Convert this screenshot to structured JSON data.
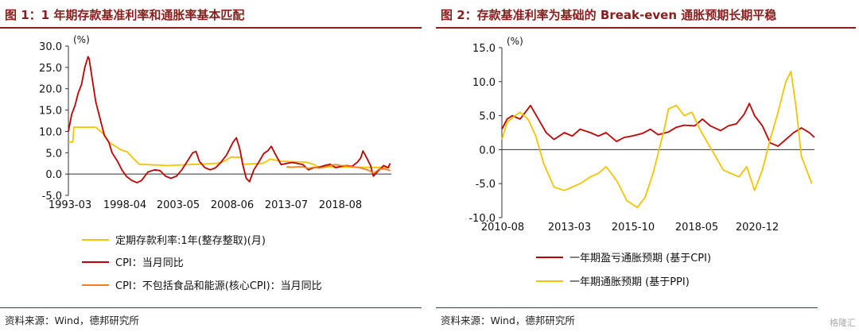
{
  "left": {
    "title": "图 1：1 年期存款基准利率和通胀率基本匹配",
    "source": "资料来源：Wind，德邦研究所"
  },
  "right": {
    "title": "图 2：存款基准利率为基础的 Break-even 通胀预期长期平稳",
    "source": "资料来源：Wind，德邦研究所"
  },
  "watermark": "格隆汇",
  "colors": {
    "heading": "#8a1c1c",
    "darkred": "#c00000",
    "gold": "#f5c400",
    "orange": "#f57c20"
  },
  "chart_data": [
    {
      "type": "line",
      "unit_label": "(%)",
      "ylim": [
        -5,
        30
      ],
      "yticks": [
        "30.0",
        "25.0",
        "20.0",
        "15.0",
        "10.0",
        "5.0",
        "0.0",
        "-5.0"
      ],
      "xticks": [
        "1993-03",
        "1998-04",
        "2003-05",
        "2008-06",
        "2013-07",
        "2018-08"
      ],
      "grid": false,
      "legend_position": "bottom",
      "series": [
        {
          "name": "定期存款利率:1年(整存整取)(月)",
          "color": "#f5c400",
          "x": [
            1993.0,
            1993.4,
            1993.5,
            1995.5,
            1996.3,
            1996.7,
            1997.8,
            1998.4,
            1998.9,
            1999.5,
            2002.1,
            2004.8,
            2006.6,
            2007.3,
            2007.6,
            2007.9,
            2008.8,
            2008.9,
            2008.95,
            2010.8,
            2011.2,
            2011.5,
            2012.5,
            2014.8,
            2015.2,
            2015.5,
            2015.7,
            2015.85,
            2022.5
          ],
          "values": [
            7.5,
            7.5,
            11.0,
            11.0,
            9.2,
            7.5,
            5.7,
            5.2,
            3.8,
            2.3,
            2.0,
            2.3,
            2.5,
            3.0,
            3.5,
            4.0,
            3.9,
            3.6,
            2.3,
            2.5,
            3.0,
            3.5,
            3.0,
            2.8,
            2.5,
            2.25,
            2.0,
            1.75,
            1.5
          ]
        },
        {
          "name": "CPI：当月同比",
          "color": "#c00000",
          "x": [
            1993.0,
            1993.3,
            1993.6,
            1993.9,
            1994.2,
            1994.5,
            1994.8,
            1994.9,
            1995.2,
            1995.5,
            1995.9,
            1996.3,
            1996.7,
            1997.0,
            1997.5,
            1997.9,
            1998.3,
            1998.8,
            1999.3,
            1999.7,
            2000.3,
            2000.9,
            2001.4,
            2001.9,
            2002.4,
            2002.9,
            2003.4,
            2003.9,
            2004.4,
            2004.7,
            2005.0,
            2005.5,
            2006.0,
            2006.5,
            2007.0,
            2007.5,
            2007.9,
            2008.1,
            2008.4,
            2008.7,
            2009.0,
            2009.3,
            2009.6,
            2010.0,
            2010.5,
            2010.9,
            2011.3,
            2011.6,
            2012.0,
            2012.5,
            2013.0,
            2013.5,
            2014.0,
            2014.5,
            2015.0,
            2015.5,
            2016.0,
            2016.5,
            2017.0,
            2017.5,
            2018.0,
            2018.5,
            2019.0,
            2019.5,
            2019.8,
            2020.0,
            2020.3,
            2020.7,
            2020.95,
            2021.5,
            2021.9,
            2022.3,
            2022.5
          ],
          "values": [
            10.0,
            14.0,
            16.0,
            19.0,
            21.0,
            25.0,
            27.5,
            27.0,
            22.0,
            17.0,
            13.0,
            9.0,
            7.5,
            5.0,
            3.0,
            1.0,
            -0.5,
            -1.5,
            -2.0,
            -1.5,
            0.5,
            1.0,
            0.8,
            -0.5,
            -1.0,
            -0.5,
            1.0,
            3.0,
            5.0,
            5.3,
            3.0,
            1.5,
            1.0,
            1.5,
            2.8,
            4.5,
            6.5,
            7.5,
            8.5,
            6.0,
            2.0,
            -1.0,
            -1.8,
            1.0,
            3.0,
            4.8,
            5.5,
            6.5,
            4.5,
            2.2,
            2.5,
            2.7,
            2.5,
            2.2,
            1.0,
            1.5,
            1.6,
            2.0,
            2.3,
            1.5,
            1.8,
            2.0,
            1.8,
            2.8,
            3.8,
            5.4,
            4.0,
            2.0,
            -0.5,
            1.0,
            2.0,
            1.5,
            2.5
          ]
        },
        {
          "name": "CPI：不包括食品和能源(核心CPI)：当月同比",
          "color": "#f57c20",
          "x": [
            2013.0,
            2013.5,
            2014.0,
            2014.5,
            2015.0,
            2015.5,
            2016.0,
            2016.5,
            2017.0,
            2017.5,
            2018.0,
            2018.5,
            2019.0,
            2019.5,
            2020.0,
            2020.5,
            2021.0,
            2021.5,
            2022.0,
            2022.5
          ],
          "values": [
            1.7,
            1.6,
            1.7,
            1.7,
            1.3,
            1.6,
            1.4,
            1.6,
            2.0,
            2.2,
            2.0,
            1.9,
            1.7,
            1.6,
            1.3,
            0.9,
            0.2,
            1.2,
            1.2,
            0.8
          ]
        }
      ]
    },
    {
      "type": "line",
      "unit_label": "(%)",
      "ylim": [
        -10,
        15
      ],
      "yticks": [
        "15.0",
        "10.0",
        "5.0",
        "0.0",
        "-5.0",
        "-10.0"
      ],
      "xticks": [
        "2010-08",
        "2013-03",
        "2015-10",
        "2018-05",
        "2020-12"
      ],
      "grid": false,
      "legend_position": "bottom",
      "series": [
        {
          "name": "一年期盈亏通胀预期 (基于CPI)",
          "color": "#c00000",
          "x": [
            2010.6,
            2010.8,
            2011.0,
            2011.3,
            2011.5,
            2011.7,
            2012.0,
            2012.3,
            2012.6,
            2013.0,
            2013.3,
            2013.6,
            2014.0,
            2014.3,
            2014.6,
            2015.0,
            2015.3,
            2015.6,
            2016.0,
            2016.3,
            2016.6,
            2017.0,
            2017.3,
            2017.6,
            2018.0,
            2018.3,
            2018.6,
            2019.0,
            2019.3,
            2019.6,
            2019.9,
            2020.1,
            2020.3,
            2020.6,
            2020.9,
            2021.2,
            2021.5,
            2021.8,
            2022.1,
            2022.4,
            2022.6
          ],
          "values": [
            3.0,
            4.5,
            5.0,
            4.5,
            5.5,
            6.5,
            4.5,
            2.5,
            1.5,
            2.5,
            2.0,
            3.0,
            2.5,
            2.0,
            2.5,
            1.2,
            1.8,
            2.0,
            2.4,
            3.0,
            2.2,
            2.6,
            3.3,
            3.6,
            3.5,
            4.5,
            3.5,
            2.8,
            3.5,
            3.8,
            5.2,
            6.8,
            5.0,
            3.5,
            1.0,
            0.5,
            1.5,
            2.5,
            3.2,
            2.5,
            1.8
          ]
        },
        {
          "name": "一年期通胀预期 (基于PPI)",
          "color": "#f5c400",
          "x": [
            2010.6,
            2010.8,
            2011.1,
            2011.3,
            2011.6,
            2011.9,
            2012.2,
            2012.6,
            2013.0,
            2013.3,
            2013.6,
            2014.0,
            2014.3,
            2014.6,
            2015.0,
            2015.4,
            2015.8,
            2016.1,
            2016.4,
            2016.8,
            2017.0,
            2017.3,
            2017.6,
            2017.9,
            2018.2,
            2018.5,
            2018.8,
            2019.1,
            2019.4,
            2019.7,
            2020.0,
            2020.3,
            2020.6,
            2020.9,
            2021.2,
            2021.5,
            2021.7,
            2021.9,
            2022.1,
            2022.3,
            2022.5
          ],
          "values": [
            1.5,
            4.0,
            5.0,
            5.5,
            4.5,
            2.0,
            -2.0,
            -5.5,
            -6.0,
            -5.5,
            -5.0,
            -4.0,
            -3.5,
            -2.5,
            -4.5,
            -7.5,
            -8.5,
            -7.0,
            -3.5,
            2.5,
            6.0,
            6.5,
            5.0,
            5.5,
            3.0,
            1.0,
            -1.0,
            -3.0,
            -3.5,
            -4.0,
            -2.5,
            -6.0,
            -3.0,
            1.5,
            5.5,
            10.0,
            11.5,
            6.0,
            -1.0,
            -3.0,
            -5.0
          ]
        }
      ]
    }
  ]
}
